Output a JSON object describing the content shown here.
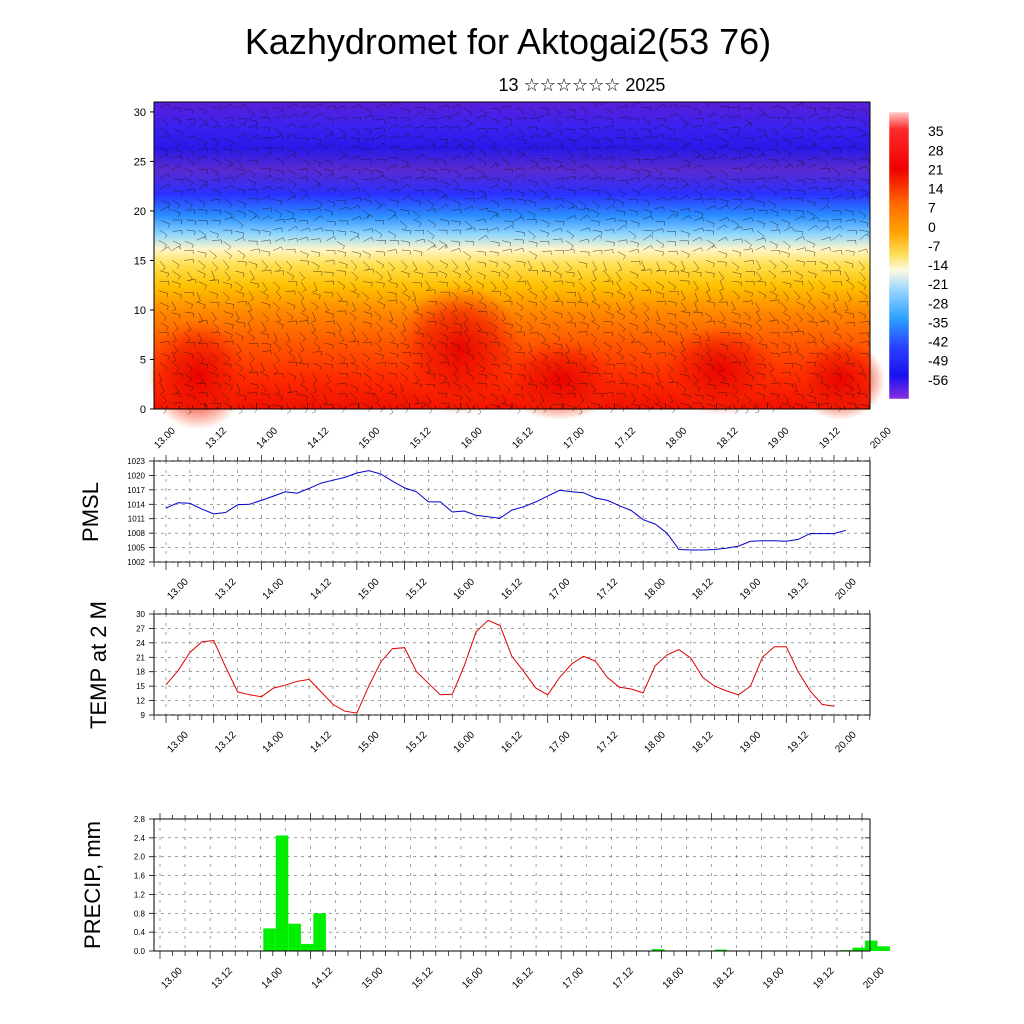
{
  "title": "Kazhydromet for Aktogai2(53 76)",
  "subtitle": "13 ☆☆☆☆☆☆ 2025",
  "x_tick_labels": [
    "13.00",
    "13.12",
    "14.00",
    "14.12",
    "15.00",
    "15.12",
    "16.00",
    "16.12",
    "17.00",
    "17.12",
    "18.00",
    "18.12",
    "19.00",
    "19.12",
    "20.00"
  ],
  "colors": {
    "pmsl_line": "#0000cc",
    "temp_line": "#dd0000",
    "precip_bar": "#00ee00"
  },
  "chart_data": [
    {
      "type": "heatmap",
      "name": "cross-section",
      "ylim": [
        0,
        31
      ],
      "y_ticks": [
        0,
        5,
        10,
        15,
        20,
        25,
        30
      ],
      "x_range": [
        0,
        14
      ],
      "colorbar": {
        "labels": [
          "35",
          "28",
          "21",
          "14",
          "7",
          "0",
          "-7",
          "-14",
          "-21",
          "-28",
          "-35",
          "-42",
          "-49",
          "-56"
        ],
        "range": [
          -63,
          42
        ]
      },
      "annotation": "wind barbs overlay"
    },
    {
      "type": "line",
      "ylabel": "PMSL",
      "ylim": [
        1002,
        1023
      ],
      "y_ticks": [
        1002,
        1005,
        1008,
        1011,
        1014,
        1017,
        1020,
        1023
      ],
      "x_step": 0.25,
      "values": [
        1013.2,
        1014.3,
        1014.2,
        1013.0,
        1012.0,
        1012.3,
        1013.9,
        1014.0,
        1014.8,
        1015.7,
        1016.6,
        1016.3,
        1017.3,
        1018.4,
        1019.0,
        1019.6,
        1020.5,
        1021.0,
        1020.3,
        1018.8,
        1017.4,
        1016.6,
        1014.5,
        1014.5,
        1012.4,
        1012.6,
        1011.7,
        1011.4,
        1011.1,
        1012.8,
        1013.5,
        1014.5,
        1015.7,
        1016.9,
        1016.6,
        1016.4,
        1015.3,
        1014.8,
        1013.7,
        1012.7,
        1010.8,
        1009.9,
        1008.0,
        1004.6,
        1004.5,
        1004.5,
        1004.6,
        1004.9,
        1005.3,
        1006.3,
        1006.4,
        1006.4,
        1006.3,
        1006.7,
        1007.9,
        1007.9,
        1007.9,
        1008.6
      ]
    },
    {
      "type": "line",
      "ylabel": "TEMP at 2 M",
      "ylim": [
        9,
        30
      ],
      "y_ticks": [
        9,
        12,
        15,
        18,
        21,
        24,
        27,
        30
      ],
      "x_step": 0.25,
      "values": [
        15.3,
        18.2,
        22.0,
        24.2,
        24.5,
        19.0,
        13.8,
        13.2,
        12.8,
        14.6,
        15.2,
        16.0,
        16.4,
        13.8,
        11.2,
        9.8,
        9.4,
        15.0,
        20.0,
        22.8,
        23.0,
        18.0,
        15.6,
        13.2,
        13.3,
        19.2,
        26.3,
        28.7,
        27.6,
        21.2,
        18.0,
        14.6,
        13.2,
        16.8,
        19.6,
        21.2,
        20.2,
        16.8,
        14.8,
        14.4,
        13.6,
        19.2,
        21.5,
        22.6,
        20.8,
        16.8,
        15.0,
        14.0,
        13.2,
        15.0,
        21.0,
        23.2,
        23.2,
        18.0,
        14.0,
        11.2,
        10.8
      ]
    },
    {
      "type": "bar",
      "ylabel": "PRECIP, mm",
      "ylim": [
        0,
        2.8
      ],
      "y_ticks": [
        "0.0",
        "0.4",
        "0.8",
        "1.2",
        "1.6",
        "2.0",
        "2.4",
        "2.8"
      ],
      "x_step": 0.25,
      "values": [
        0,
        0,
        0,
        0,
        0,
        0,
        0,
        0,
        0.48,
        2.45,
        0.58,
        0.15,
        0.8,
        0,
        0,
        0,
        0,
        0,
        0,
        0,
        0,
        0,
        0,
        0,
        0,
        0,
        0,
        0,
        0,
        0,
        0,
        0,
        0,
        0,
        0,
        0,
        0,
        0,
        0,
        0.04,
        0,
        0,
        0,
        0,
        0.03,
        0,
        0,
        0,
        0,
        0,
        0,
        0,
        0,
        0,
        0.02,
        0.07,
        0.22,
        0.1,
        0,
        0,
        0
      ]
    }
  ]
}
